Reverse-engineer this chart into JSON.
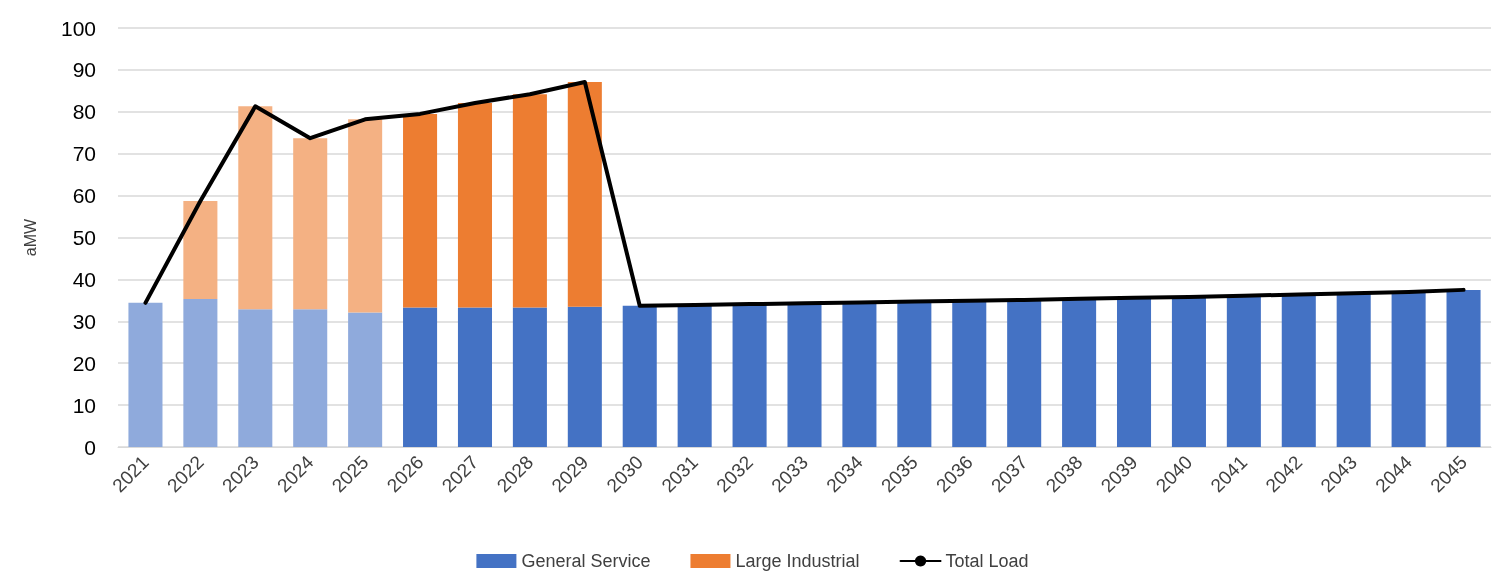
{
  "chart_data": {
    "type": "bar",
    "ylabel": "aMW",
    "stacked": true,
    "categories": [
      "2021",
      "2022",
      "2023",
      "2024",
      "2025",
      "2026",
      "2027",
      "2028",
      "2029",
      "2030",
      "2031",
      "2032",
      "2033",
      "2034",
      "2035",
      "2036",
      "2037",
      "2038",
      "2039",
      "2040",
      "2041",
      "2042",
      "2043",
      "2044",
      "2045"
    ],
    "series": [
      {
        "name": "General Service",
        "color": "#4472c4",
        "colors": [
          "#8faadc",
          "#8faadc",
          "#8faadc",
          "#8faadc",
          "#8faadc",
          "#4472c4",
          "#4472c4",
          "#4472c4",
          "#4472c4",
          "#4472c4",
          "#4472c4",
          "#4472c4",
          "#4472c4",
          "#4472c4",
          "#4472c4",
          "#4472c4",
          "#4472c4",
          "#4472c4",
          "#4472c4",
          "#4472c4",
          "#4472c4",
          "#4472c4",
          "#4472c4",
          "#4472c4",
          "#4472c4"
        ],
        "values": [
          34.4,
          35.3,
          32.9,
          32.9,
          32.1,
          33.3,
          33.3,
          33.3,
          33.5,
          33.7,
          33.9,
          34.1,
          34.3,
          34.5,
          34.7,
          34.9,
          35.1,
          35.4,
          35.6,
          35.8,
          36.1,
          36.4,
          36.7,
          37,
          37.5
        ]
      },
      {
        "name": "Large Industrial",
        "color": "#ed7d31",
        "colors": [
          "#f4b183",
          "#f4b183",
          "#f4b183",
          "#f4b183",
          "#f4b183",
          "#ed7d31",
          "#ed7d31",
          "#ed7d31",
          "#ed7d31",
          "#ed7d31",
          "#ed7d31",
          "#ed7d31",
          "#ed7d31",
          "#ed7d31",
          "#ed7d31",
          "#ed7d31",
          "#ed7d31",
          "#ed7d31",
          "#ed7d31",
          "#ed7d31",
          "#ed7d31",
          "#ed7d31",
          "#ed7d31",
          "#ed7d31",
          "#ed7d31"
        ],
        "values": [
          null,
          23.4,
          48.4,
          40.8,
          46.1,
          46.2,
          48.8,
          50.9,
          53.6,
          null,
          null,
          null,
          null,
          null,
          null,
          null,
          null,
          null,
          null,
          null,
          null,
          null,
          null,
          null,
          null
        ]
      },
      {
        "name": "Total Load",
        "type": "line",
        "color": "#000000",
        "values": [
          34.4,
          58.7,
          81.3,
          73.7,
          78.2,
          79.5,
          82.1,
          84.2,
          87.1,
          33.7,
          33.9,
          34.1,
          34.3,
          34.5,
          34.7,
          34.9,
          35.1,
          35.4,
          35.6,
          35.8,
          36.1,
          36.4,
          36.7,
          37,
          37.5
        ]
      }
    ],
    "ylim": [
      0,
      100
    ],
    "yticks": [
      0,
      10,
      20,
      30,
      40,
      50,
      60,
      70,
      80,
      90,
      100
    ],
    "grid": "y",
    "legend": "bottom",
    "marker": "none"
  }
}
